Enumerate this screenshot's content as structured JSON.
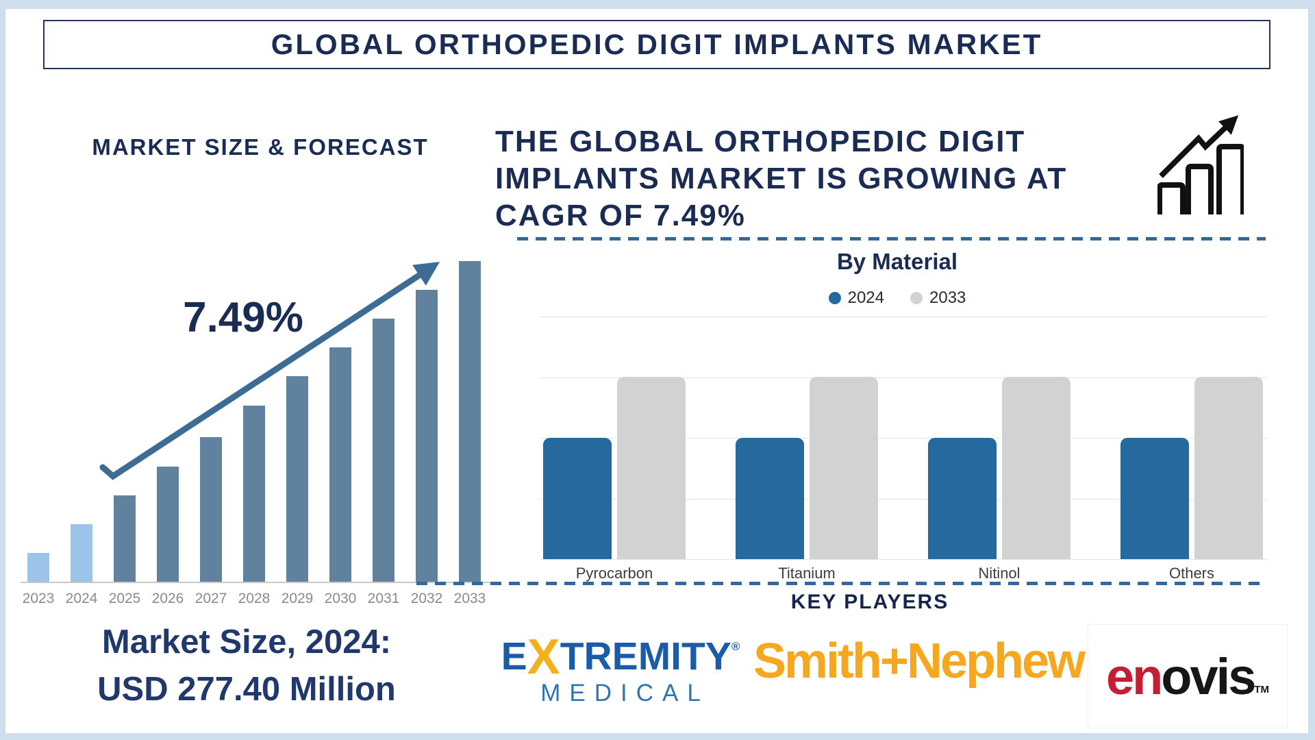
{
  "title": "GLOBAL ORTHOPEDIC DIGIT IMPLANTS MARKET",
  "left": {
    "section_title": "MARKET SIZE & FORECAST",
    "cagr_label": "7.49%",
    "market_size_line1": "Market Size, 2024:",
    "market_size_line2": "USD 277.40 Million"
  },
  "right": {
    "heading_lines": [
      "THE GLOBAL ORTHOPEDIC DIGIT",
      "IMPLANTS MARKET IS GROWING AT",
      "CAGR OF 7.49%"
    ],
    "by_material_title": "By Material",
    "key_players_title": "KEY PLAYERS",
    "players": [
      {
        "name": "Extremity Medical",
        "part1": "E",
        "part2": "X",
        "part3": "TREMITY",
        "reg": "®",
        "line2": "MEDICAL"
      },
      {
        "name": "Smith+Nephew",
        "text": "Smith+Nephew"
      },
      {
        "name": "Enovis",
        "text_red": "en",
        "text_dark": "ovis",
        "tm": "TM"
      }
    ]
  },
  "icons": [
    "growth-chart-icon",
    "trend-arrow-icon"
  ],
  "colors": {
    "frame": "#CFDEED",
    "navy": "#1B2C54",
    "forecast_bar": "#61829F",
    "forecast_bar_highlight": "#9CC3E8",
    "trend_arrow": "#3C6B94",
    "material_2024": "#25699F",
    "material_2033": "#D2D2D2",
    "dashed_line": "#35689A",
    "year_label": "#8A8A8A",
    "extremity_blue": "#1A5CA8",
    "extremity_yellow": "#F2B01D",
    "medical_blue": "#2E74B5",
    "smith_nephew_orange": "#F5A81F",
    "enovis_red": "#C41E35"
  },
  "chart_data": [
    {
      "type": "bar",
      "title": "MARKET SIZE & FORECAST",
      "categories": [
        "2023",
        "2024",
        "2025",
        "2026",
        "2027",
        "2028",
        "2029",
        "2030",
        "2031",
        "2032",
        "2033"
      ],
      "values_pct_of_max": [
        9,
        18,
        27,
        36,
        45,
        55,
        64,
        73,
        82,
        91,
        100
      ],
      "highlight_years": [
        "2023",
        "2024"
      ],
      "highlight_color": "#9CC3E8",
      "bar_color": "#61829F",
      "cagr_pct": 7.49,
      "market_size_2024_usd_million": 277.4,
      "annotation": "7.49%",
      "note": "Market Size, 2024: USD 277.40 Million",
      "grid": false
    },
    {
      "type": "bar",
      "title": "By Material",
      "categories": [
        "Pyrocarbon",
        "Titanium",
        "Nitinol",
        "Others"
      ],
      "series": [
        {
          "name": "2024",
          "color": "#25699F",
          "values_pct_of_axis": [
            50,
            50,
            50,
            50
          ]
        },
        {
          "name": "2033",
          "color": "#D2D2D2",
          "values_pct_of_axis": [
            75,
            75,
            75,
            75
          ]
        }
      ],
      "legend_position": "top",
      "grid": true,
      "gridline_count": 5
    }
  ]
}
